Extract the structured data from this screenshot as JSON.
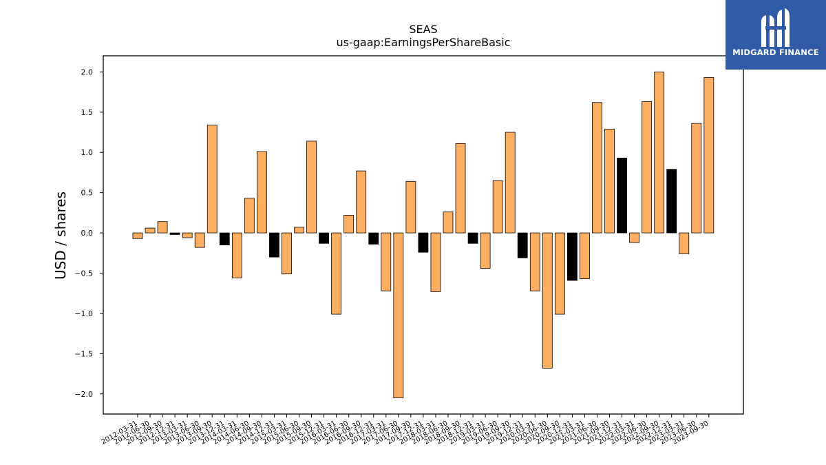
{
  "logo": {
    "name": "MIDGARD FINANCE",
    "icon": "midgard-m-icon",
    "background": "#2f5ba7"
  },
  "chart_data": {
    "type": "bar",
    "title": "SEAS",
    "subtitle": "us-gaap:EarningsPerShareBasic",
    "xlabel": "",
    "ylabel": "USD / shares",
    "ylim": [
      -2.25,
      2.2
    ],
    "yticks": [
      -2.0,
      -1.5,
      -1.0,
      -0.5,
      0.0,
      0.5,
      1.0,
      1.5,
      2.0
    ],
    "ytick_labels": [
      "−2.0",
      "−1.5",
      "−1.0",
      "−0.5",
      "0.0",
      "0.5",
      "1.0",
      "1.5",
      "2.0"
    ],
    "grid": false,
    "colors": {
      "default": "#fdae61",
      "highlight": "#000000",
      "edge": "#000000"
    },
    "categories": [
      "2012-03-31",
      "2012-06-30",
      "2012-09-30",
      "2012-12-31",
      "2013-03-31",
      "2013-06-30",
      "2013-09-30",
      "2013-12-31",
      "2014-03-31",
      "2014-06-30",
      "2014-09-30",
      "2014-12-31",
      "2015-03-31",
      "2015-06-30",
      "2015-09-30",
      "2015-12-31",
      "2016-03-31",
      "2016-06-30",
      "2016-09-30",
      "2016-12-31",
      "2017-03-31",
      "2017-06-30",
      "2017-09-30",
      "2017-12-31",
      "2018-03-31",
      "2018-06-30",
      "2018-09-30",
      "2018-12-31",
      "2019-03-31",
      "2019-06-30",
      "2019-09-30",
      "2019-12-31",
      "2020-03-31",
      "2020-06-30",
      "2020-09-30",
      "2020-12-31",
      "2021-03-31",
      "2021-06-30",
      "2021-09-30",
      "2021-12-31",
      "2022-03-31",
      "2022-06-30",
      "2022-09-30",
      "2022-12-31",
      "2023-03-31",
      "2023-06-30",
      "2023-09-30"
    ],
    "values": [
      -0.07,
      0.06,
      0.14,
      -0.02,
      -0.06,
      -0.18,
      1.34,
      -0.15,
      -0.56,
      0.43,
      1.01,
      -0.3,
      -0.51,
      0.07,
      1.14,
      -0.13,
      -1.01,
      0.22,
      0.77,
      -0.14,
      -0.72,
      -2.05,
      0.64,
      -0.24,
      -0.73,
      0.26,
      1.11,
      -0.13,
      -0.44,
      0.65,
      1.25,
      -0.31,
      -0.72,
      -1.68,
      -1.01,
      -0.59,
      -0.57,
      1.62,
      1.29,
      0.93,
      -0.12,
      1.63,
      2.0,
      0.79,
      -0.26,
      1.36,
      1.93
    ],
    "highlighted": [
      "2012-12-31",
      "2013-12-31",
      "2014-12-31",
      "2015-12-31",
      "2016-12-31",
      "2017-12-31",
      "2018-12-31",
      "2019-12-31",
      "2020-12-31",
      "2021-12-31",
      "2022-12-31"
    ]
  }
}
